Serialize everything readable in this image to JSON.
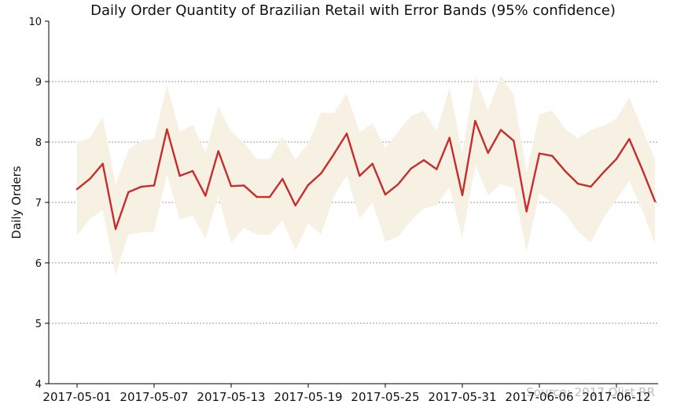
{
  "chart_data": {
    "type": "line",
    "title": "Daily Order Quantity of Brazilian Retail with Error Bands (95% confidence)",
    "xlabel": "",
    "ylabel": "Daily Orders",
    "ylim": [
      4,
      10
    ],
    "yticks": [
      4,
      5,
      6,
      7,
      8,
      9,
      10
    ],
    "x_start": "2017-05-01",
    "xtick_labels": [
      "2017-05-01",
      "2017-05-07",
      "2017-05-13",
      "2017-05-19",
      "2017-05-25",
      "2017-05-31",
      "2017-06-06",
      "2017-06-12"
    ],
    "x": [
      "2017-05-01",
      "2017-05-02",
      "2017-05-03",
      "2017-05-04",
      "2017-05-05",
      "2017-05-06",
      "2017-05-07",
      "2017-05-08",
      "2017-05-09",
      "2017-05-10",
      "2017-05-11",
      "2017-05-12",
      "2017-05-13",
      "2017-05-14",
      "2017-05-15",
      "2017-05-16",
      "2017-05-17",
      "2017-05-18",
      "2017-05-19",
      "2017-05-20",
      "2017-05-21",
      "2017-05-22",
      "2017-05-23",
      "2017-05-24",
      "2017-05-25",
      "2017-05-26",
      "2017-05-27",
      "2017-05-28",
      "2017-05-29",
      "2017-05-30",
      "2017-05-31",
      "2017-06-01",
      "2017-06-02",
      "2017-06-03",
      "2017-06-04",
      "2017-06-05",
      "2017-06-06",
      "2017-06-07",
      "2017-06-08",
      "2017-06-09",
      "2017-06-10",
      "2017-06-11",
      "2017-06-12",
      "2017-06-13",
      "2017-06-14",
      "2017-06-15"
    ],
    "series": [
      {
        "name": "",
        "color": "#c62d2d",
        "values": [
          7.22,
          7.39,
          7.64,
          6.56,
          7.17,
          7.26,
          7.28,
          8.21,
          7.44,
          7.52,
          7.11,
          7.85,
          7.27,
          7.28,
          7.09,
          7.09,
          7.39,
          6.95,
          7.29,
          7.48,
          7.8,
          8.14,
          7.44,
          7.64,
          7.13,
          7.3,
          7.56,
          7.7,
          7.55,
          8.07,
          7.12,
          8.35,
          7.82,
          8.2,
          8.02,
          6.85,
          7.81,
          7.77,
          7.52,
          7.31,
          7.26,
          7.5,
          7.72,
          8.05,
          7.55,
          7.02
        ],
        "lower": [
          6.45,
          6.72,
          6.88,
          5.8,
          6.47,
          6.5,
          6.52,
          7.46,
          6.72,
          6.78,
          6.4,
          7.1,
          6.33,
          6.58,
          6.47,
          6.46,
          6.7,
          6.21,
          6.65,
          6.47,
          7.1,
          7.45,
          6.73,
          7.0,
          6.35,
          6.43,
          6.7,
          6.9,
          6.95,
          7.25,
          6.42,
          7.62,
          7.12,
          7.3,
          7.24,
          6.18,
          7.15,
          7.0,
          6.82,
          6.52,
          6.33,
          6.75,
          7.05,
          7.35,
          6.88,
          6.31
        ],
        "upper": [
          8.0,
          8.07,
          8.42,
          7.3,
          7.87,
          8.03,
          8.05,
          8.95,
          8.16,
          8.29,
          7.82,
          8.59,
          8.18,
          7.98,
          7.72,
          7.72,
          8.09,
          7.71,
          7.97,
          8.49,
          8.48,
          8.8,
          8.16,
          8.31,
          7.9,
          8.17,
          8.43,
          8.52,
          8.18,
          8.9,
          7.82,
          9.08,
          8.52,
          9.1,
          8.78,
          7.5,
          8.46,
          8.52,
          8.22,
          8.06,
          8.2,
          8.27,
          8.39,
          8.74,
          8.22,
          7.72
        ]
      }
    ],
    "band_color": "#f7f1e4",
    "grid": "y-dotted",
    "watermark": "Source: 2017 Olist RR"
  }
}
